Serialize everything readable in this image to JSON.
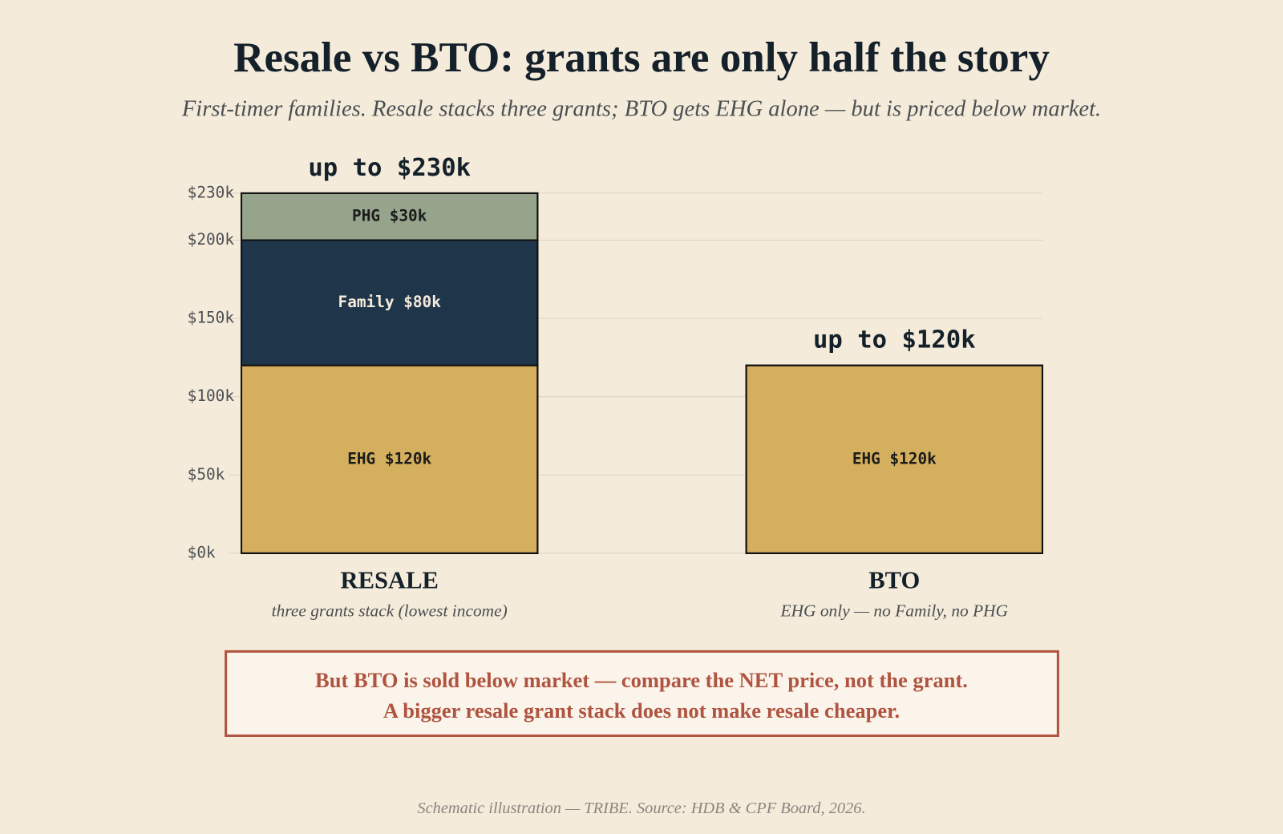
{
  "chart_data": {
    "type": "stacked_bar",
    "title": "Resale vs BTO: grants are only half the story",
    "subtitle": "First-timer families. Resale stacks three grants; BTO gets EHG alone — but is priced below market.",
    "categories": [
      "RESALE",
      "BTO"
    ],
    "category_notes": [
      "three grants stack (lowest income)",
      "EHG only — no Family, no PHG"
    ],
    "series": [
      {
        "color": "#d4af5e",
        "label_color": "#1b1b1b",
        "values": [
          120,
          120
        ],
        "value_labels": [
          "EHG $120k",
          "EHG $120k"
        ]
      },
      {
        "color": "#1f354a",
        "label_color": "#f5ebda",
        "values": [
          80,
          null
        ],
        "value_labels": [
          "Family $80k",
          null
        ]
      },
      {
        "color": "#97a48c",
        "label_color": "#1b1b1b",
        "values": [
          30,
          null
        ],
        "value_labels": [
          "PHG $30k",
          null
        ]
      }
    ],
    "totals": [
      230,
      120
    ],
    "total_labels": [
      "up to $230k",
      "up to $120k"
    ],
    "ylim": [
      0,
      230
    ],
    "yticks": [
      {
        "value": 0,
        "label": "$0k"
      },
      {
        "value": 50,
        "label": "$50k"
      },
      {
        "value": 100,
        "label": "$100k"
      },
      {
        "value": 150,
        "label": "$150k"
      },
      {
        "value": 200,
        "label": "$200k"
      },
      {
        "value": 230,
        "label": "$230k"
      }
    ],
    "grid": true,
    "callout": [
      "But BTO is sold below market — compare the NET price, not the grant.",
      "A bigger resale grant stack does not make resale cheaper."
    ],
    "footer": "Schematic illustration — TRIBE. Source: HDB & CPF Board, 2026."
  }
}
